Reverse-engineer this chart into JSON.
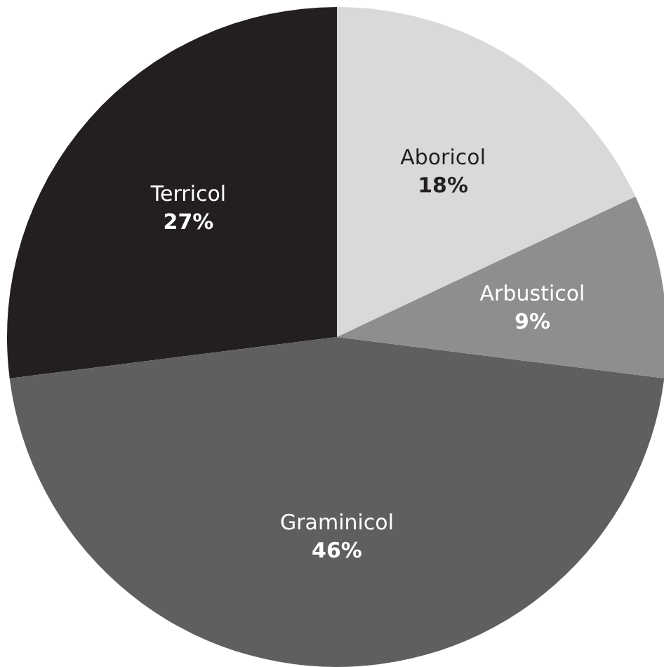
{
  "chart_data": {
    "type": "pie",
    "categories": [
      "Aboricol",
      "Arbusticol",
      "Graminicol",
      "Terricol"
    ],
    "values": [
      18,
      9,
      46,
      27
    ],
    "colors": [
      "#d9d9d9",
      "#8e8e8f",
      "#5f5f61",
      "#231f20"
    ],
    "value_labels": [
      "18%",
      "9%",
      "46%",
      "27%"
    ]
  }
}
